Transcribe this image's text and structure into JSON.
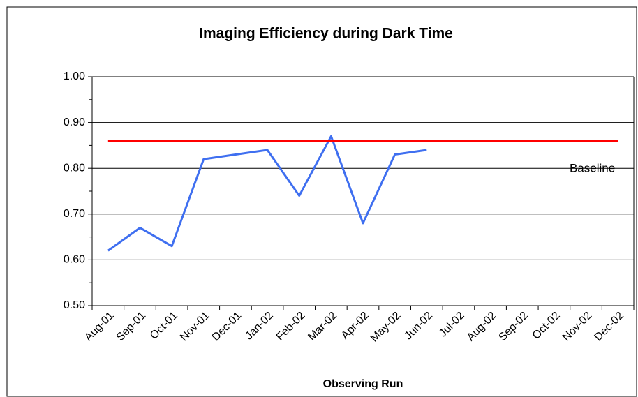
{
  "chart_data": {
    "type": "line",
    "title": "Imaging Efficiency during Dark Time",
    "xlabel": "Observing Run",
    "categories": [
      "Aug-01",
      "Sep-01",
      "Oct-01",
      "Nov-01",
      "Dec-01",
      "Jan-02",
      "Feb-02",
      "Mar-02",
      "Apr-02",
      "May-02",
      "Jun-02",
      "Jul-02",
      "Aug-02",
      "Sep-02",
      "Oct-02",
      "Nov-02",
      "Dec-02"
    ],
    "series": [
      {
        "color": "#3f6ff0",
        "values": [
          0.62,
          0.67,
          0.63,
          0.82,
          0.83,
          0.84,
          0.74,
          0.87,
          0.68,
          0.83,
          0.84,
          null,
          null,
          null,
          null,
          null,
          null
        ]
      },
      {
        "name": "Baseline",
        "color": "#ff0000",
        "values": [
          0.86,
          0.86,
          0.86,
          0.86,
          0.86,
          0.86,
          0.86,
          0.86,
          0.86,
          0.86,
          0.86,
          0.86,
          0.86,
          0.86,
          0.86,
          0.86,
          0.86
        ]
      }
    ],
    "ylim": [
      0.5,
      1.0
    ],
    "yticks": [
      {
        "value": 0.5,
        "label": "0.50"
      },
      {
        "value": 0.6,
        "label": "0.60"
      },
      {
        "value": 0.7,
        "label": "0.70"
      },
      {
        "value": 0.8,
        "label": "0.80"
      },
      {
        "value": 0.9,
        "label": "0.90"
      },
      {
        "value": 1.0,
        "label": "1.00"
      }
    ],
    "yminorticks": [
      0.55,
      0.65,
      0.75,
      0.85,
      0.95
    ],
    "grid": true
  }
}
